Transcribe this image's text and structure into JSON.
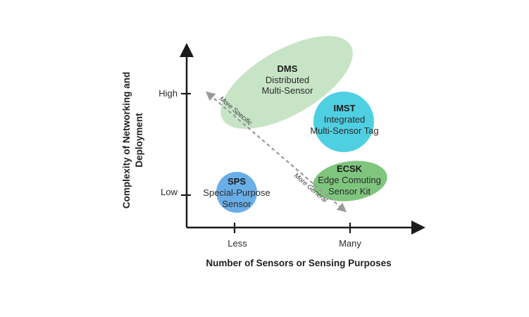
{
  "axes": {
    "x_title": "Number of Sensors or Sensing Purposes",
    "y_title_line1": "Complexity of Networking and",
    "y_title_line2": "Deployment",
    "x_ticks": [
      "Less",
      "Many"
    ],
    "y_ticks": [
      "High",
      "Low"
    ]
  },
  "nodes": [
    {
      "abbr": "SPS",
      "line1": "Special-Purpose",
      "line2": "Sensor"
    },
    {
      "abbr": "DMS",
      "line1": "Distributed",
      "line2": "Multi-Sensor"
    },
    {
      "abbr": "IMST",
      "line1": "Integrated",
      "line2": "Multi-Sensor Tag"
    },
    {
      "abbr": "ECSK",
      "line1": "Edge Comuting",
      "line2": "Sensor Kit"
    }
  ],
  "arrow_labels": {
    "upper": "More Specific",
    "lower": "More General"
  },
  "colors": {
    "axis": "#1a1a1a",
    "sps": "#6aaee8",
    "dms": "#c7e5c6",
    "imst": "#4fcfe2",
    "ecsk": "#7fc57e",
    "diagonal_arrow": "#9a9a9a"
  }
}
